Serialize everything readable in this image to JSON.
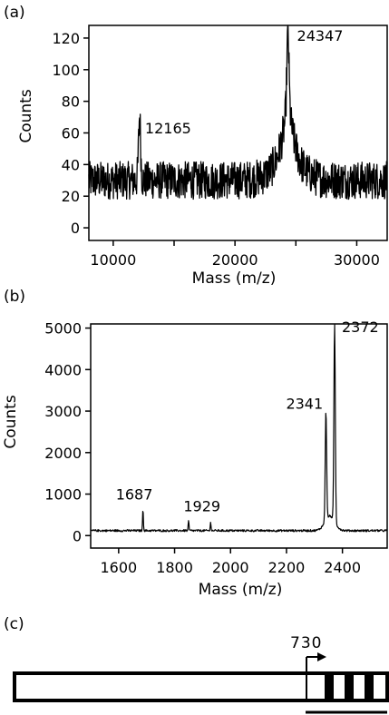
{
  "chart_data": [
    {
      "panel": "(a)",
      "type": "line",
      "xlabel": "Mass (m/z)",
      "ylabel": "Counts",
      "xlim": [
        8000,
        32500
      ],
      "ylim": [
        -8,
        128
      ],
      "xticks": [
        10000,
        20000,
        30000
      ],
      "xticks_minor": [
        15000,
        25000
      ],
      "yticks": [
        0,
        20,
        40,
        60,
        80,
        100,
        120
      ],
      "baseline": 30,
      "noise": 12,
      "peaks": [
        {
          "x": 12165,
          "y": 70,
          "label": "12165"
        },
        {
          "x": 24347,
          "y": 125,
          "label": "24347"
        }
      ]
    },
    {
      "panel": "(b)",
      "type": "line",
      "xlabel": "Mass (m/z)",
      "ylabel": "Counts",
      "xlim": [
        1500,
        2560
      ],
      "ylim": [
        -300,
        5100
      ],
      "xticks": [
        1600,
        1800,
        2000,
        2200,
        2400
      ],
      "yticks": [
        0,
        1000,
        2000,
        3000,
        4000,
        5000
      ],
      "baseline": 120,
      "noise": 25,
      "peaks": [
        {
          "x": 1687,
          "y": 650,
          "label": "1687"
        },
        {
          "x": 1850,
          "y": 350,
          "label": ""
        },
        {
          "x": 1929,
          "y": 320,
          "label": "1929"
        },
        {
          "x": 2341,
          "y": 2750,
          "label": "2341"
        },
        {
          "x": 2372,
          "y": 4900,
          "label": "2372"
        }
      ]
    }
  ],
  "panel_c": {
    "label": "(c)",
    "marker": "730"
  }
}
